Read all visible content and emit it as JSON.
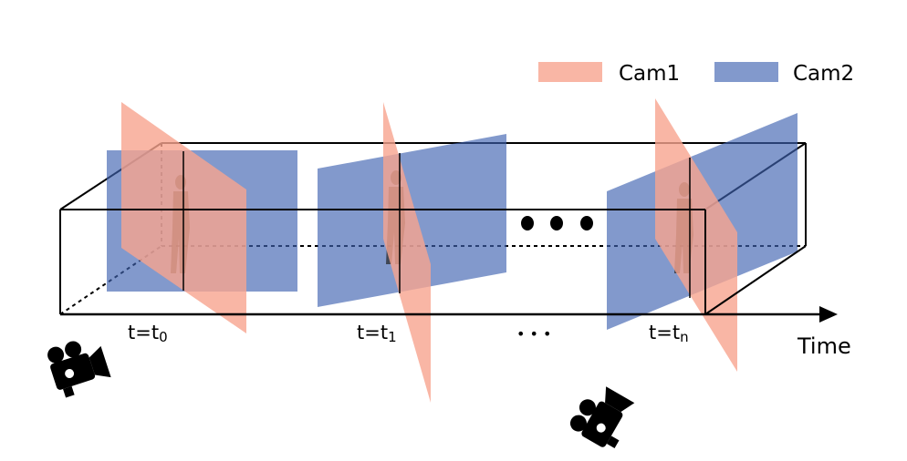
{
  "legend": [
    {
      "label": "Cam1",
      "color": "#f7a48e"
    },
    {
      "label": "Cam2",
      "color": "#3f63b0"
    }
  ],
  "time_labels": [
    {
      "base": "t=t",
      "sub": "0"
    },
    {
      "base": "t=t",
      "sub": "1"
    },
    {
      "base": "t=t",
      "sub": "n"
    }
  ],
  "ellipsis": "• • •",
  "axis_label": "Time",
  "icons": [
    "video-camera-icon",
    "video-camera-icon"
  ],
  "colors": {
    "cam1": "#f7a48e",
    "cam2": "#3f63b0",
    "line": "#000000"
  }
}
